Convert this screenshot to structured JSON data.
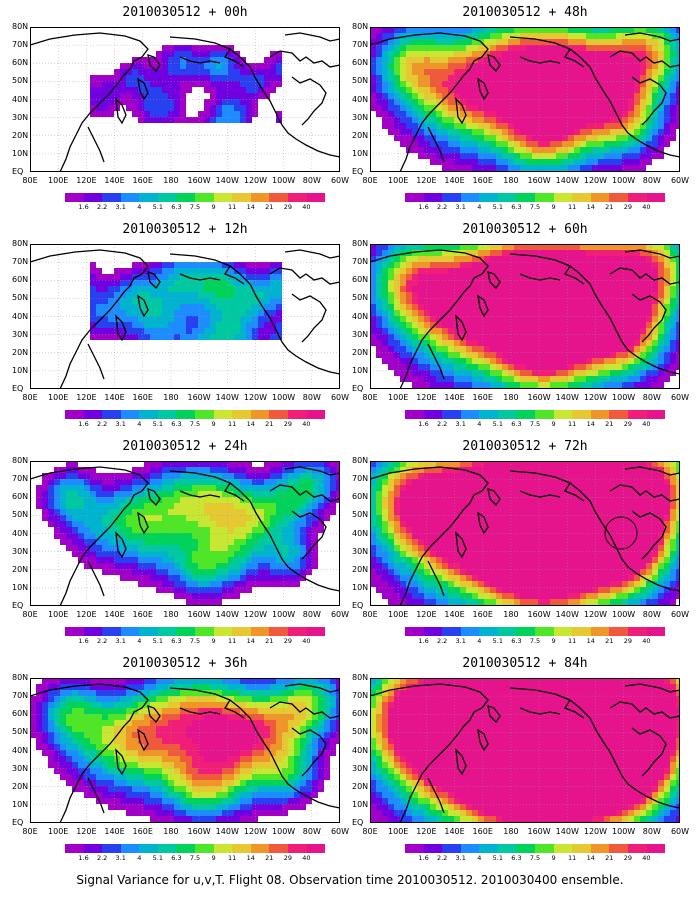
{
  "caption": "Signal Variance for u,v,T. Flight 08. Observation time 2010030512. 2010030400 ensemble.",
  "lon_labels": [
    "80E",
    "100E",
    "120E",
    "140E",
    "160E",
    "180",
    "160W",
    "140W",
    "120W",
    "100W",
    "80W",
    "60W"
  ],
  "lat_labels": [
    "80N",
    "70N",
    "60N",
    "50N",
    "40N",
    "30N",
    "20N",
    "10N",
    "EQ"
  ],
  "colorbar": {
    "labels": [
      "1.6",
      "2.2",
      "3.1",
      "4",
      "5.1",
      "6.3",
      "7.5",
      "9",
      "11",
      "14",
      "21",
      "29",
      "40"
    ],
    "colors": [
      "#a000c8",
      "#7000e0",
      "#2840f0",
      "#1c8cff",
      "#00b4d0",
      "#00c8a0",
      "#00d25a",
      "#50e628",
      "#c8e632",
      "#e6c832",
      "#f09628",
      "#f05a3c",
      "#f01e78",
      "#e6148c"
    ]
  },
  "panels": [
    {
      "title": "2010030512 + 00h",
      "level": 0
    },
    {
      "title": "2010030512 + 48h",
      "level": 4
    },
    {
      "title": "2010030512 + 12h",
      "level": 1
    },
    {
      "title": "2010030512 + 60h",
      "level": 5
    },
    {
      "title": "2010030512 + 24h",
      "level": 2
    },
    {
      "title": "2010030512 + 72h",
      "level": 6
    },
    {
      "title": "2010030512 + 36h",
      "level": 3
    },
    {
      "title": "2010030512 + 84h",
      "level": 7
    }
  ]
}
